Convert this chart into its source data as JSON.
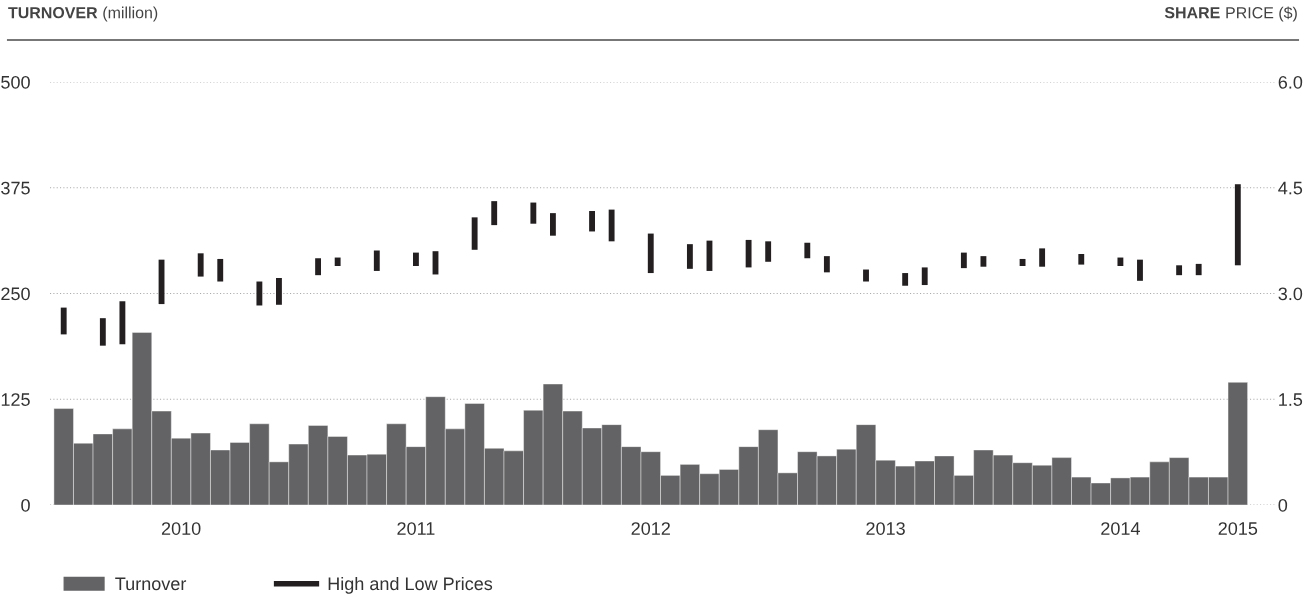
{
  "chart_data": {
    "type": "bar",
    "ylabel": "TURNOVER (million)",
    "y2label": "SHARE PRICE ($)",
    "categories": [
      null,
      null,
      null,
      null,
      null,
      null,
      "2010",
      null,
      null,
      null,
      null,
      null,
      null,
      null,
      null,
      null,
      null,
      null,
      "2011",
      null,
      null,
      null,
      null,
      null,
      null,
      null,
      null,
      null,
      null,
      null,
      "2012",
      null,
      null,
      null,
      null,
      null,
      null,
      null,
      null,
      null,
      null,
      null,
      "2013",
      null,
      null,
      null,
      null,
      null,
      null,
      null,
      null,
      null,
      null,
      null,
      "2014",
      null,
      null,
      null,
      null,
      null,
      "2015"
    ],
    "ylim": [
      0,
      500
    ],
    "yticks": [
      0,
      125,
      250,
      375,
      500
    ],
    "y2lim": [
      0,
      6
    ],
    "y2ticks": [
      0,
      1.5,
      {
        "value": 3,
        "label": "3.0"
      },
      4.5,
      {
        "value": 6,
        "label": "6.0"
      }
    ],
    "grid": "y",
    "legend": "bottom left",
    "series": [
      {
        "name": "Turnover",
        "color": "#636365",
        "values": [
          114,
          73,
          84,
          90,
          204,
          111,
          79,
          85,
          65,
          74,
          96,
          51,
          72,
          94,
          81,
          59,
          60,
          96,
          69,
          128,
          90,
          120,
          67,
          64,
          112,
          143,
          111,
          91,
          95,
          69,
          63,
          35,
          48,
          37,
          42,
          69,
          89,
          38,
          63,
          58,
          66,
          95,
          53,
          46,
          52,
          58,
          35,
          65,
          59,
          50,
          47,
          56,
          33,
          26,
          32,
          33,
          51,
          56,
          33,
          33,
          145
        ]
      },
      {
        "name": "High and Low Prices",
        "axis": "y2",
        "color": "#231f20",
        "base": [
          2.42,
          null,
          2.26,
          2.28,
          null,
          2.85,
          null,
          3.24,
          3.17,
          null,
          2.83,
          2.84,
          null,
          3.26,
          3.39,
          null,
          3.32,
          null,
          3.39,
          3.27,
          null,
          3.62,
          3.97,
          null,
          3.99,
          3.82,
          null,
          3.88,
          3.74,
          null,
          3.29,
          null,
          3.35,
          3.32,
          null,
          3.37,
          3.45,
          null,
          3.5,
          3.3,
          null,
          3.17,
          null,
          3.11,
          3.12,
          null,
          3.36,
          3.38,
          null,
          3.39,
          3.38,
          null,
          3.41,
          null,
          3.39,
          3.18,
          null,
          3.26,
          3.26,
          null,
          3.4
        ],
        "values": [
          0.38,
          null,
          0.39,
          0.61,
          null,
          0.63,
          null,
          0.33,
          0.32,
          null,
          0.34,
          0.38,
          null,
          0.24,
          0.12,
          null,
          0.29,
          null,
          0.19,
          0.33,
          null,
          0.46,
          0.34,
          null,
          0.3,
          0.32,
          null,
          0.29,
          0.45,
          null,
          0.56,
          null,
          0.35,
          0.43,
          null,
          0.39,
          0.29,
          null,
          0.22,
          0.23,
          null,
          0.17,
          null,
          0.18,
          0.25,
          null,
          0.22,
          0.15,
          null,
          0.1,
          0.26,
          null,
          0.15,
          null,
          0.12,
          0.3,
          null,
          0.14,
          0.16,
          null,
          1.15
        ]
      }
    ]
  }
}
